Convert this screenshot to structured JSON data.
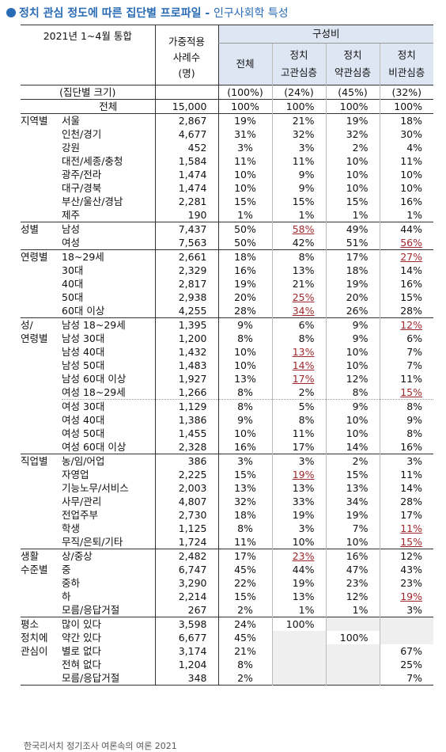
{
  "title": {
    "main": "정치 관심 정도에 따른 집단별 프로파일",
    "sep": " - ",
    "sub": "인구사회학 특성"
  },
  "header": {
    "period": "2021년 1~4월 통합",
    "weighted_cases": "가중적용\n사례수\n(명)",
    "composition": "구성비",
    "columns": [
      "전체",
      "정치\n고관심층",
      "정치\n약관심층",
      "정치\n비관심층"
    ],
    "size_label": "(집단별 크기)",
    "sizes": [
      "(100%)",
      "(24%)",
      "(45%)",
      "(32%)"
    ]
  },
  "colors": {
    "title": "#2a6bb5",
    "highlight": "#a0282c",
    "header_bg": "#dde6f2"
  },
  "rows": [
    {
      "group": "",
      "sub": "전체",
      "n": "15,000",
      "p": [
        "100%",
        "100%",
        "100%",
        "100%"
      ],
      "total": true,
      "top": true
    },
    {
      "group": "지역별",
      "sub": "서울",
      "n": "2,867",
      "p": [
        "19%",
        "21%",
        "19%",
        "18%"
      ],
      "top": true
    },
    {
      "group": "",
      "sub": "인천/경기",
      "n": "4,677",
      "p": [
        "31%",
        "32%",
        "32%",
        "30%"
      ]
    },
    {
      "group": "",
      "sub": "강원",
      "n": "452",
      "p": [
        "3%",
        "3%",
        "2%",
        "4%"
      ]
    },
    {
      "group": "",
      "sub": "대전/세종/충청",
      "n": "1,584",
      "p": [
        "11%",
        "11%",
        "10%",
        "11%"
      ]
    },
    {
      "group": "",
      "sub": "광주/전라",
      "n": "1,474",
      "p": [
        "10%",
        "9%",
        "10%",
        "10%"
      ]
    },
    {
      "group": "",
      "sub": "대구/경북",
      "n": "1,474",
      "p": [
        "10%",
        "9%",
        "10%",
        "10%"
      ]
    },
    {
      "group": "",
      "sub": "부산/울산/경남",
      "n": "2,281",
      "p": [
        "15%",
        "15%",
        "15%",
        "16%"
      ]
    },
    {
      "group": "",
      "sub": "제주",
      "n": "190",
      "p": [
        "1%",
        "1%",
        "1%",
        "1%"
      ]
    },
    {
      "group": "성별",
      "sub": "남성",
      "n": "7,437",
      "p": [
        "50%",
        "58%",
        "49%",
        "44%"
      ],
      "hl": [
        1
      ],
      "top": true
    },
    {
      "group": "",
      "sub": "여성",
      "n": "7,563",
      "p": [
        "50%",
        "42%",
        "51%",
        "56%"
      ],
      "hl": [
        3
      ]
    },
    {
      "group": "연령별",
      "sub": "18~29세",
      "n": "2,661",
      "p": [
        "18%",
        "8%",
        "17%",
        "27%"
      ],
      "hl": [
        3
      ],
      "top": true
    },
    {
      "group": "",
      "sub": "30대",
      "n": "2,329",
      "p": [
        "16%",
        "13%",
        "18%",
        "14%"
      ]
    },
    {
      "group": "",
      "sub": "40대",
      "n": "2,817",
      "p": [
        "19%",
        "21%",
        "19%",
        "16%"
      ]
    },
    {
      "group": "",
      "sub": "50대",
      "n": "2,938",
      "p": [
        "20%",
        "25%",
        "20%",
        "15%"
      ],
      "hl": [
        1
      ]
    },
    {
      "group": "",
      "sub": "60대 이상",
      "n": "4,255",
      "p": [
        "28%",
        "34%",
        "26%",
        "28%"
      ],
      "hl": [
        1
      ]
    },
    {
      "group": "성/",
      "sub": "남성 18~29세",
      "n": "1,395",
      "p": [
        "9%",
        "6%",
        "9%",
        "12%"
      ],
      "hl": [
        3
      ],
      "top": true
    },
    {
      "group": "연령별",
      "sub": "남성 30대",
      "n": "1,200",
      "p": [
        "8%",
        "8%",
        "9%",
        "6%"
      ]
    },
    {
      "group": "",
      "sub": "남성 40대",
      "n": "1,432",
      "p": [
        "10%",
        "13%",
        "10%",
        "7%"
      ],
      "hl": [
        1
      ]
    },
    {
      "group": "",
      "sub": "남성 50대",
      "n": "1,483",
      "p": [
        "10%",
        "14%",
        "10%",
        "7%"
      ],
      "hl": [
        1
      ]
    },
    {
      "group": "",
      "sub": "남성 60대 이상",
      "n": "1,927",
      "p": [
        "13%",
        "17%",
        "12%",
        "11%"
      ],
      "hl": [
        1
      ]
    },
    {
      "group": "",
      "sub": "여성 18~29세",
      "n": "1,266",
      "p": [
        "8%",
        "2%",
        "8%",
        "15%"
      ],
      "hl": [
        3
      ],
      "dotted": true
    },
    {
      "group": "",
      "sub": "여성 30대",
      "n": "1,129",
      "p": [
        "8%",
        "5%",
        "9%",
        "8%"
      ]
    },
    {
      "group": "",
      "sub": "여성 40대",
      "n": "1,386",
      "p": [
        "9%",
        "8%",
        "10%",
        "9%"
      ]
    },
    {
      "group": "",
      "sub": "여성 50대",
      "n": "1,455",
      "p": [
        "10%",
        "11%",
        "10%",
        "8%"
      ]
    },
    {
      "group": "",
      "sub": "여성 60대 이상",
      "n": "2,328",
      "p": [
        "16%",
        "17%",
        "14%",
        "16%"
      ]
    },
    {
      "group": "직업별",
      "sub": "농/임/어업",
      "n": "386",
      "p": [
        "3%",
        "3%",
        "2%",
        "3%"
      ],
      "top": true
    },
    {
      "group": "",
      "sub": "자영업",
      "n": "2,225",
      "p": [
        "15%",
        "19%",
        "15%",
        "11%"
      ],
      "hl": [
        1
      ]
    },
    {
      "group": "",
      "sub": "기능노무/서비스",
      "n": "2,003",
      "p": [
        "13%",
        "13%",
        "13%",
        "14%"
      ]
    },
    {
      "group": "",
      "sub": "사무/관리",
      "n": "4,807",
      "p": [
        "32%",
        "33%",
        "34%",
        "28%"
      ]
    },
    {
      "group": "",
      "sub": "전업주부",
      "n": "2,730",
      "p": [
        "18%",
        "19%",
        "19%",
        "17%"
      ]
    },
    {
      "group": "",
      "sub": "학생",
      "n": "1,125",
      "p": [
        "8%",
        "3%",
        "7%",
        "11%"
      ],
      "hl": [
        3
      ]
    },
    {
      "group": "",
      "sub": "무직/은퇴/기타",
      "n": "1,724",
      "p": [
        "11%",
        "10%",
        "10%",
        "15%"
      ],
      "hl": [
        3
      ]
    },
    {
      "group": "생활",
      "sub": "상/중상",
      "n": "2,482",
      "p": [
        "17%",
        "23%",
        "16%",
        "12%"
      ],
      "hl": [
        1
      ],
      "top": true
    },
    {
      "group": "수준별",
      "sub": "중",
      "n": "6,747",
      "p": [
        "45%",
        "44%",
        "47%",
        "43%"
      ]
    },
    {
      "group": "",
      "sub": "중하",
      "n": "3,290",
      "p": [
        "22%",
        "19%",
        "23%",
        "23%"
      ]
    },
    {
      "group": "",
      "sub": "하",
      "n": "2,214",
      "p": [
        "15%",
        "13%",
        "12%",
        "19%"
      ],
      "hl": [
        3
      ]
    },
    {
      "group": "",
      "sub": "모름/응답거절",
      "n": "267",
      "p": [
        "2%",
        "1%",
        "1%",
        "3%"
      ]
    },
    {
      "group": "평소",
      "sub": "많이 있다",
      "n": "3,598",
      "p": [
        "24%",
        "100%",
        "",
        ""
      ],
      "shade": [
        2,
        3
      ],
      "top": true
    },
    {
      "group": "정치에",
      "sub": "약간 있다",
      "n": "6,677",
      "p": [
        "45%",
        "",
        "100%",
        ""
      ],
      "shade": [
        1,
        3
      ]
    },
    {
      "group": "관심이",
      "sub": "별로 없다",
      "n": "3,174",
      "p": [
        "21%",
        "",
        "",
        "67%"
      ],
      "shade": [
        1,
        2
      ]
    },
    {
      "group": "",
      "sub": "전혀 없다",
      "n": "1,204",
      "p": [
        "8%",
        "",
        "",
        "25%"
      ],
      "shade": [
        1,
        2
      ]
    },
    {
      "group": "",
      "sub": "모름/응답거절",
      "n": "348",
      "p": [
        "2%",
        "",
        "",
        "7%"
      ],
      "shade": [
        1,
        2
      ],
      "last": true
    }
  ],
  "footer": "한국리서치 정기조사 여론속의 여론 2021"
}
